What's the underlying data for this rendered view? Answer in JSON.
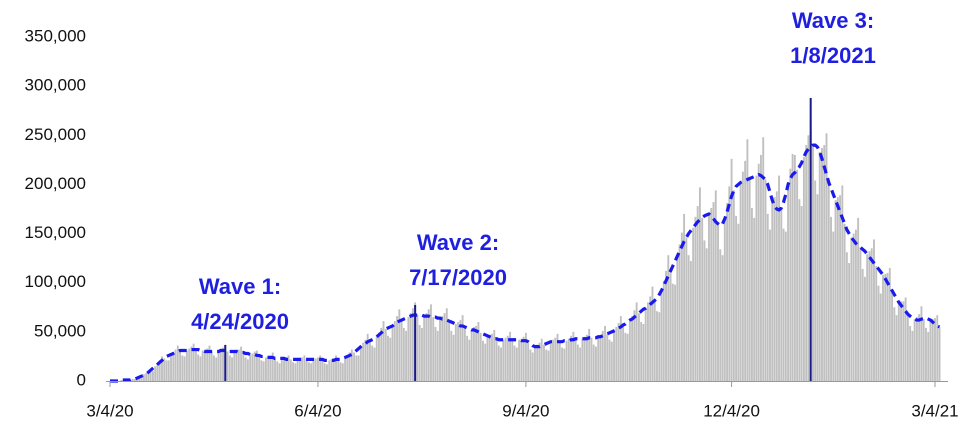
{
  "chart_data": {
    "type": "bar",
    "categories": [
      "3/4/20",
      null,
      null,
      null,
      null,
      null,
      null,
      null,
      null,
      null,
      null,
      null,
      null,
      null,
      null,
      null,
      null,
      null,
      null,
      null,
      null,
      null,
      null,
      null,
      null,
      null,
      null,
      null,
      null,
      null,
      null,
      null,
      null,
      null,
      null,
      null,
      null,
      null,
      null,
      null,
      null,
      null,
      null,
      null,
      null,
      null,
      null,
      null,
      null,
      null,
      null,
      null,
      null,
      null,
      null,
      null,
      null,
      null,
      null,
      null,
      null,
      null,
      null,
      null,
      null,
      null,
      null,
      null,
      null,
      null,
      null,
      null,
      null,
      null,
      null,
      null,
      null,
      null,
      null,
      null,
      null,
      null,
      null,
      null,
      null,
      null,
      null,
      null,
      null,
      null,
      null,
      null,
      "6/4/20",
      null,
      null,
      null,
      null,
      null,
      null,
      null,
      null,
      null,
      null,
      null,
      null,
      null,
      null,
      null,
      null,
      null,
      null,
      null,
      null,
      null,
      null,
      null,
      null,
      null,
      null,
      null,
      null,
      null,
      null,
      null,
      null,
      null,
      null,
      null,
      null,
      null,
      null,
      null,
      null,
      null,
      null,
      null,
      null,
      null,
      null,
      null,
      null,
      null,
      null,
      null,
      null,
      null,
      null,
      null,
      null,
      null,
      null,
      null,
      null,
      null,
      null,
      null,
      null,
      null,
      null,
      null,
      null,
      null,
      null,
      null,
      null,
      null,
      null,
      null,
      null,
      null,
      null,
      null,
      null,
      null,
      null,
      null,
      null,
      null,
      null,
      null,
      null,
      null,
      null,
      null,
      "9/4/20",
      null,
      null,
      null,
      null,
      null,
      null,
      null,
      null,
      null,
      null,
      null,
      null,
      null,
      null,
      null,
      null,
      null,
      null,
      null,
      null,
      null,
      null,
      null,
      null,
      null,
      null,
      null,
      null,
      null,
      null,
      null,
      null,
      null,
      null,
      null,
      null,
      null,
      null,
      null,
      null,
      null,
      null,
      null,
      null,
      null,
      null,
      null,
      null,
      null,
      null,
      null,
      null,
      null,
      null,
      null,
      null,
      null,
      null,
      null,
      null,
      null,
      null,
      null,
      null,
      null,
      null,
      null,
      null,
      null,
      null,
      null,
      null,
      null,
      null,
      null,
      null,
      null,
      null,
      null,
      null,
      null,
      null,
      null,
      null,
      null,
      null,
      null,
      null,
      null,
      null,
      "12/4/20",
      null,
      null,
      null,
      null,
      null,
      null,
      null,
      null,
      null,
      null,
      null,
      null,
      null,
      null,
      null,
      null,
      null,
      null,
      null,
      null,
      null,
      null,
      null,
      null,
      null,
      null,
      null,
      null,
      null,
      null,
      null,
      null,
      null,
      null,
      null,
      null,
      null,
      null,
      null,
      null,
      null,
      null,
      null,
      null,
      null,
      null,
      null,
      null,
      null,
      null,
      null,
      null,
      null,
      null,
      null,
      null,
      null,
      null,
      null,
      null,
      null,
      null,
      null,
      null,
      null,
      null,
      null,
      null,
      null,
      null,
      null,
      null,
      null,
      null,
      null,
      null,
      null,
      null,
      null,
      null,
      null,
      null,
      null,
      null,
      null,
      null,
      null,
      null,
      null,
      "3/4/21",
      null,
      null
    ],
    "series": [
      {
        "type": "bar",
        "color": "#c0c0c0",
        "values": [
          0,
          0,
          0,
          0,
          0,
          1000,
          1000,
          1000,
          1000,
          1000,
          2000,
          2000,
          2000,
          4000,
          5000,
          7000,
          8000,
          9000,
          9000,
          10000,
          15000,
          18000,
          21000,
          25000,
          23000,
          21000,
          21000,
          27000,
          29000,
          32000,
          36000,
          31000,
          26000,
          25000,
          31000,
          33000,
          35000,
          38000,
          32000,
          27000,
          25000,
          31000,
          32000,
          33000,
          36000,
          30000,
          26000,
          24000,
          30000,
          33000,
          34000,
          37000,
          30000,
          26000,
          24000,
          30000,
          32000,
          32000,
          35000,
          29000,
          24000,
          22000,
          27000,
          28000,
          30000,
          31000,
          26000,
          21000,
          20000,
          24000,
          25000,
          26000,
          29000,
          23000,
          20000,
          18000,
          23000,
          23000,
          24000,
          26000,
          22000,
          19000,
          18000,
          22000,
          23000,
          24000,
          26000,
          22000,
          19000,
          18000,
          22000,
          23000,
          24000,
          26000,
          22000,
          18000,
          17000,
          21000,
          22000,
          23000,
          26000,
          22000,
          19000,
          18000,
          24000,
          26000,
          29000,
          32000,
          29000,
          26000,
          26000,
          35000,
          39000,
          42000,
          48000,
          41000,
          36000,
          34000,
          45000,
          49000,
          54000,
          61000,
          53000,
          46000,
          44000,
          56000,
          61000,
          66000,
          73000,
          62000,
          54000,
          51000,
          65000,
          69000,
          74000,
          80000,
          67000,
          57000,
          54000,
          66000,
          69000,
          73000,
          78000,
          65000,
          55000,
          51000,
          64000,
          66000,
          69000,
          74000,
          61000,
          51000,
          47000,
          58000,
          60000,
          62000,
          67000,
          55000,
          46000,
          42000,
          52000,
          55000,
          56000,
          60000,
          49000,
          41000,
          38000,
          46000,
          47000,
          48000,
          52000,
          43000,
          36000,
          34000,
          42000,
          44000,
          46000,
          50000,
          42000,
          36000,
          34000,
          42000,
          43000,
          45000,
          49000,
          40000,
          32000,
          29000,
          35000,
          37000,
          39000,
          43000,
          37000,
          32000,
          31000,
          40000,
          42000,
          44000,
          48000,
          40000,
          34000,
          33000,
          41000,
          43000,
          46000,
          50000,
          43000,
          37000,
          34000,
          43000,
          45000,
          47000,
          53000,
          44000,
          37000,
          35000,
          45000,
          47000,
          51000,
          56000,
          48000,
          42000,
          40000,
          51000,
          55000,
          59000,
          66000,
          57000,
          49000,
          48000,
          62000,
          66000,
          72000,
          80000,
          69000,
          60000,
          58000,
          74000,
          80000,
          86000,
          96000,
          82000,
          71000,
          70000,
          92000,
          102000,
          112000,
          128000,
          112000,
          99000,
          98000,
          127000,
          139000,
          151000,
          170000,
          146000,
          128000,
          122000,
          156000,
          167000,
          178000,
          197000,
          166000,
          143000,
          135000,
          170000,
          176000,
          182000,
          194000,
          160000,
          134000,
          128000,
          165000,
          181000,
          198000,
          226000,
          194000,
          168000,
          160000,
          202000,
          213000,
          224000,
          246000,
          206000,
          176000,
          166000,
          209000,
          221000,
          230000,
          248000,
          205000,
          170000,
          154000,
          184000,
          187000,
          193000,
          209000,
          176000,
          155000,
          152000,
          200000,
          216000,
          231000,
          230000,
          215000,
          185000,
          178000,
          228000,
          240000,
          250000,
          265000,
          240000,
          204000,
          190000,
          233000,
          237000,
          240000,
          252000,
          202000,
          167000,
          152000,
          184000,
          187000,
          189000,
          199000,
          160000,
          131000,
          120000,
          146000,
          150000,
          154000,
          166000,
          136000,
          114000,
          106000,
          129000,
          132000,
          135000,
          144000,
          117000,
          97000,
          89000,
          108000,
          109000,
          110000,
          115000,
          92000,
          75000,
          67000,
          80000,
          81000,
          81000,
          85000,
          68000,
          56000,
          51000,
          63000,
          65000,
          68000,
          76000,
          63000,
          54000,
          50000,
          62000,
          63000,
          64000,
          67000,
          55000
        ]
      },
      {
        "type": "line",
        "color": "#1a1aee",
        "style": "dashed",
        "values": [
          0,
          0,
          0,
          0,
          0,
          1000,
          1000,
          1000,
          1000,
          1000,
          2000,
          2000,
          3000,
          4000,
          5000,
          6000,
          7000,
          9000,
          11000,
          13000,
          15000,
          17000,
          19000,
          21000,
          23000,
          25000,
          26000,
          27000,
          28000,
          29000,
          30000,
          31000,
          31000,
          31000,
          31000,
          31000,
          32000,
          32000,
          32000,
          32000,
          31000,
          31000,
          30000,
          30000,
          30000,
          30000,
          30000,
          30000,
          30000,
          31000,
          31000,
          31000,
          30000,
          30000,
          30000,
          30000,
          30000,
          29000,
          29000,
          29000,
          28000,
          28000,
          27000,
          27000,
          27000,
          26000,
          26000,
          25000,
          25000,
          24000,
          24000,
          24000,
          24000,
          23000,
          23000,
          23000,
          23000,
          23000,
          22000,
          22000,
          22000,
          22000,
          22000,
          22000,
          22000,
          22000,
          22000,
          22000,
          22000,
          22000,
          22000,
          22000,
          22000,
          22000,
          22000,
          21000,
          21000,
          21000,
          21000,
          21000,
          22000,
          22000,
          22000,
          23000,
          24000,
          25000,
          26000,
          27000,
          29000,
          31000,
          33000,
          35000,
          37000,
          38000,
          40000,
          41000,
          42000,
          43000,
          45000,
          47000,
          49000,
          51000,
          53000,
          54000,
          55000,
          56000,
          58000,
          60000,
          61000,
          62000,
          63000,
          64000,
          65000,
          66000,
          67000,
          67000,
          67000,
          67000,
          67000,
          66000,
          66000,
          66000,
          65000,
          65000,
          65000,
          64000,
          64000,
          63000,
          63000,
          62000,
          61000,
          60000,
          59000,
          58000,
          57000,
          56000,
          56000,
          55000,
          54000,
          53000,
          52000,
          52000,
          51000,
          50000,
          49000,
          48000,
          47000,
          46000,
          45000,
          44000,
          43000,
          43000,
          42000,
          42000,
          42000,
          42000,
          42000,
          42000,
          42000,
          42000,
          42000,
          42000,
          41000,
          41000,
          41000,
          40000,
          38000,
          36000,
          35000,
          35000,
          35000,
          36000,
          37000,
          38000,
          39000,
          40000,
          40000,
          40000,
          40000,
          40000,
          40000,
          41000,
          41000,
          41000,
          42000,
          42000,
          43000,
          43000,
          43000,
          43000,
          43000,
          43000,
          44000,
          44000,
          44000,
          44000,
          45000,
          45000,
          46000,
          47000,
          48000,
          49000,
          50000,
          51000,
          52000,
          54000,
          55000,
          57000,
          58000,
          60000,
          62000,
          63000,
          65000,
          67000,
          69000,
          71000,
          73000,
          74000,
          76000,
          78000,
          80000,
          82000,
          84000,
          88000,
          92000,
          97000,
          102000,
          107000,
          112000,
          117000,
          122000,
          127000,
          132000,
          137000,
          142000,
          146000,
          150000,
          153000,
          156000,
          159000,
          162000,
          164000,
          166000,
          168000,
          169000,
          170000,
          168000,
          165000,
          162000,
          160000,
          158000,
          160000,
          165000,
          172000,
          180000,
          188000,
          194000,
          198000,
          200000,
          202000,
          203000,
          204000,
          205000,
          206000,
          207000,
          208000,
          209000,
          210000,
          209000,
          207000,
          205000,
          200000,
          192000,
          184000,
          178000,
          175000,
          174000,
          176000,
          182000,
          190000,
          200000,
          206000,
          210000,
          212000,
          215000,
          218000,
          222000,
          228000,
          233000,
          236000,
          238000,
          240000,
          240000,
          238000,
          233000,
          226000,
          218000,
          210000,
          202000,
          196000,
          190000,
          184000,
          178000,
          172000,
          166000,
          160000,
          154000,
          150000,
          146000,
          143000,
          140000,
          138000,
          136000,
          134000,
          132000,
          129000,
          126000,
          123000,
          120000,
          117000,
          114000,
          111000,
          108000,
          104000,
          100000,
          96000,
          92000,
          88000,
          84000,
          80000,
          77000,
          74000,
          71000,
          68000,
          66000,
          64000,
          63000,
          62000,
          62000,
          63000,
          63000,
          64000,
          63000,
          62000,
          60000,
          58000,
          56000,
          55000
        ]
      }
    ],
    "ylim": [
      0,
      350000
    ],
    "yticks": [
      0,
      {
        "value": 50000,
        "label": "50,000"
      },
      {
        "value": 100000,
        "label": "100,000"
      },
      {
        "value": 150000,
        "label": "150,000"
      },
      {
        "value": 200000,
        "label": "200,000"
      },
      {
        "value": 250000,
        "label": "250,000"
      },
      {
        "value": 300000,
        "label": "300,000"
      },
      {
        "value": 350000,
        "label": "350,000"
      }
    ],
    "grid": false,
    "annotations": [
      {
        "lines": [
          "Wave 1:",
          "4/24/2020"
        ],
        "color": "#1a1a8c"
      },
      {
        "lines": [
          "Wave 2:",
          "7/17/2020"
        ],
        "color": "#1a1a8c"
      },
      {
        "lines": [
          "Wave 3:",
          "1/8/2021"
        ],
        "color": "#1a1a8c"
      }
    ]
  }
}
